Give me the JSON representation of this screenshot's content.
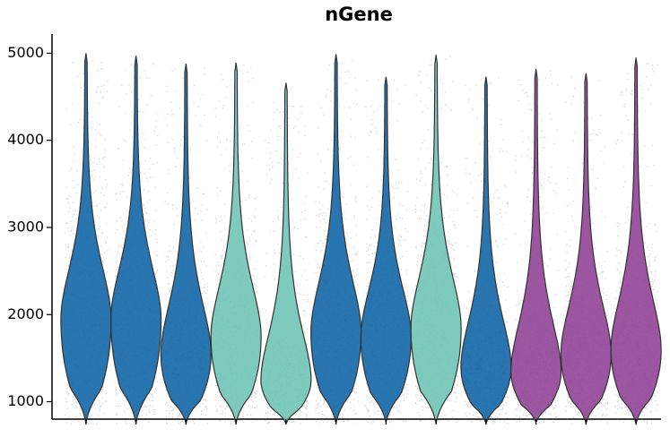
{
  "chart_data": {
    "type": "violin",
    "title": "nGene",
    "categories": [
      null,
      null,
      null,
      null,
      null,
      null,
      null,
      null,
      null,
      null,
      null,
      null
    ],
    "values": [
      1950,
      1950,
      1550,
      1750,
      1250,
      1800,
      1750,
      1850,
      1400,
      1350,
      1550,
      1600
    ],
    "mins": [
      750,
      750,
      750,
      750,
      750,
      750,
      760,
      750,
      750,
      760,
      750,
      750
    ],
    "maxs": [
      5000,
      4970,
      4880,
      4890,
      4660,
      4990,
      4730,
      4980,
      4730,
      4820,
      4770,
      4950
    ],
    "colors": [
      "#0b62a4",
      "#0b62a4",
      "#0b62a4",
      "#6cc3b3",
      "#6cc3b3",
      "#0b62a4",
      "#0b62a4",
      "#6cc3b3",
      "#0b62a4",
      "#8e3d94",
      "#8e3d94",
      "#8e3d94"
    ],
    "ylim": [
      800,
      5220
    ],
    "yticks": [
      1000,
      2000,
      3000,
      4000,
      5000
    ]
  }
}
